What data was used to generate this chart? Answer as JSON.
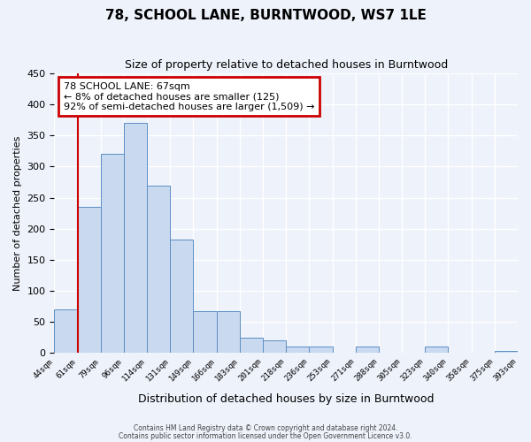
{
  "title": "78, SCHOOL LANE, BURNTWOOD, WS7 1LE",
  "subtitle": "Size of property relative to detached houses in Burntwood",
  "xlabel": "Distribution of detached houses by size in Burntwood",
  "ylabel": "Number of detached properties",
  "bin_labels": [
    "44sqm",
    "61sqm",
    "79sqm",
    "96sqm",
    "114sqm",
    "131sqm",
    "149sqm",
    "166sqm",
    "183sqm",
    "201sqm",
    "218sqm",
    "236sqm",
    "253sqm",
    "271sqm",
    "288sqm",
    "305sqm",
    "323sqm",
    "340sqm",
    "358sqm",
    "375sqm",
    "393sqm"
  ],
  "bar_heights": [
    70,
    235,
    320,
    370,
    270,
    183,
    68,
    68,
    25,
    20,
    10,
    10,
    0,
    10,
    0,
    0,
    10,
    0,
    0,
    3
  ],
  "bar_color": "#c9d9f0",
  "bar_edge_color": "#5b8ec4",
  "ylim": [
    0,
    450
  ],
  "yticks": [
    0,
    50,
    100,
    150,
    200,
    250,
    300,
    350,
    400,
    450
  ],
  "property_line_x": 1,
  "property_line_color": "#cc0000",
  "annotation_title": "78 SCHOOL LANE: 67sqm",
  "annotation_line1": "← 8% of detached houses are smaller (125)",
  "annotation_line2": "92% of semi-detached houses are larger (1,509) →",
  "annotation_box_edgecolor": "#cc0000",
  "annotation_box_facecolor": "#ffffff",
  "footnote1": "Contains HM Land Registry data © Crown copyright and database right 2024.",
  "footnote2": "Contains public sector information licensed under the Open Government Licence v3.0.",
  "background_color": "#eef2fb",
  "grid_color": "#ffffff",
  "spine_color": "#aaaaaa"
}
